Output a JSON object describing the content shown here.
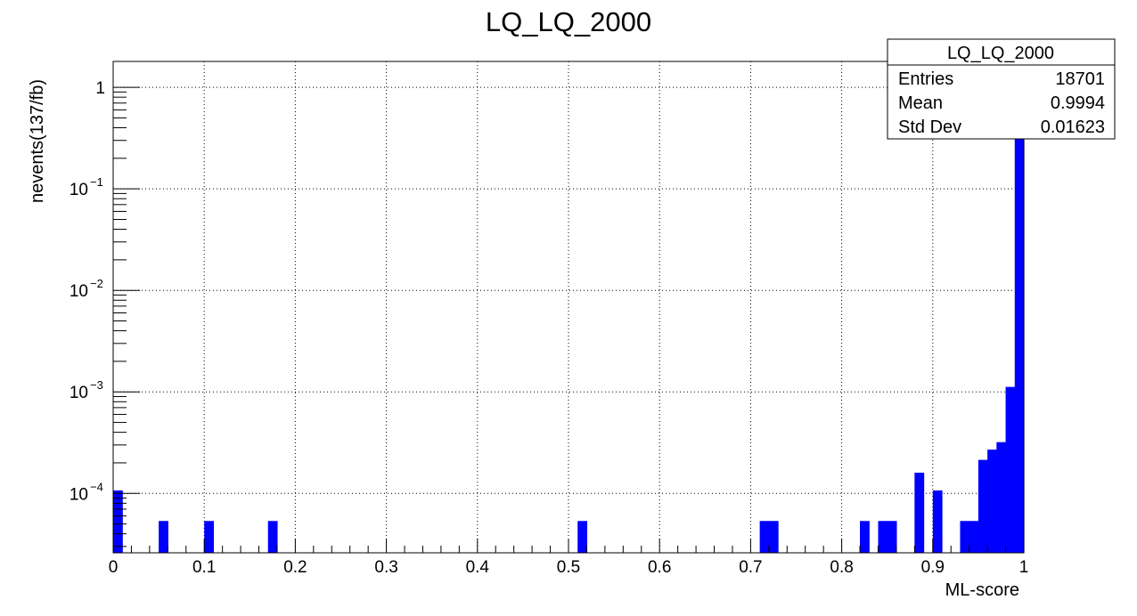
{
  "chart_data": {
    "type": "bar",
    "title": "LQ_LQ_2000",
    "xlabel": "ML-score",
    "ylabel": "nevents(137/fb)",
    "xlim": [
      0,
      1
    ],
    "ylim": [
      2.6e-05,
      1.8
    ],
    "log_y": true,
    "grid": true,
    "legend": "none",
    "x_ticks": [
      "0",
      "0.1",
      "0.2",
      "0.3",
      "0.4",
      "0.5",
      "0.6",
      "0.7",
      "0.8",
      "0.9",
      "1"
    ],
    "y_ticks": [
      {
        "base": "10",
        "exp": "−4",
        "value": 0.0001
      },
      {
        "base": "10",
        "exp": "−3",
        "value": 0.001
      },
      {
        "base": "10",
        "exp": "−2",
        "value": 0.01
      },
      {
        "base": "10",
        "exp": "−1",
        "value": 0.1
      },
      {
        "base": "1",
        "exp": "",
        "value": 1
      }
    ],
    "bin_width": 0.01,
    "series": [
      {
        "color": "#0000ff",
        "bins": [
          {
            "x": 0.0,
            "y": 0.000107
          },
          {
            "x": 0.05,
            "y": 5.35e-05
          },
          {
            "x": 0.1,
            "y": 5.35e-05
          },
          {
            "x": 0.17,
            "y": 5.35e-05
          },
          {
            "x": 0.51,
            "y": 5.35e-05
          },
          {
            "x": 0.71,
            "y": 5.35e-05
          },
          {
            "x": 0.72,
            "y": 5.35e-05
          },
          {
            "x": 0.82,
            "y": 5.35e-05
          },
          {
            "x": 0.84,
            "y": 5.35e-05
          },
          {
            "x": 0.85,
            "y": 5.35e-05
          },
          {
            "x": 0.88,
            "y": 0.00016
          },
          {
            "x": 0.9,
            "y": 0.000107
          },
          {
            "x": 0.93,
            "y": 5.35e-05
          },
          {
            "x": 0.94,
            "y": 5.35e-05
          },
          {
            "x": 0.95,
            "y": 0.000214
          },
          {
            "x": 0.96,
            "y": 0.00027
          },
          {
            "x": 0.97,
            "y": 0.00032
          },
          {
            "x": 0.98,
            "y": 0.00112
          },
          {
            "x": 0.99,
            "y": 0.35
          }
        ]
      }
    ],
    "stats": {
      "title": "LQ_LQ_2000",
      "rows": [
        {
          "label": "Entries",
          "value": "18701"
        },
        {
          "label": "Mean",
          "value": "0.9994"
        },
        {
          "label": "Std Dev",
          "value": "0.01623"
        }
      ]
    }
  }
}
